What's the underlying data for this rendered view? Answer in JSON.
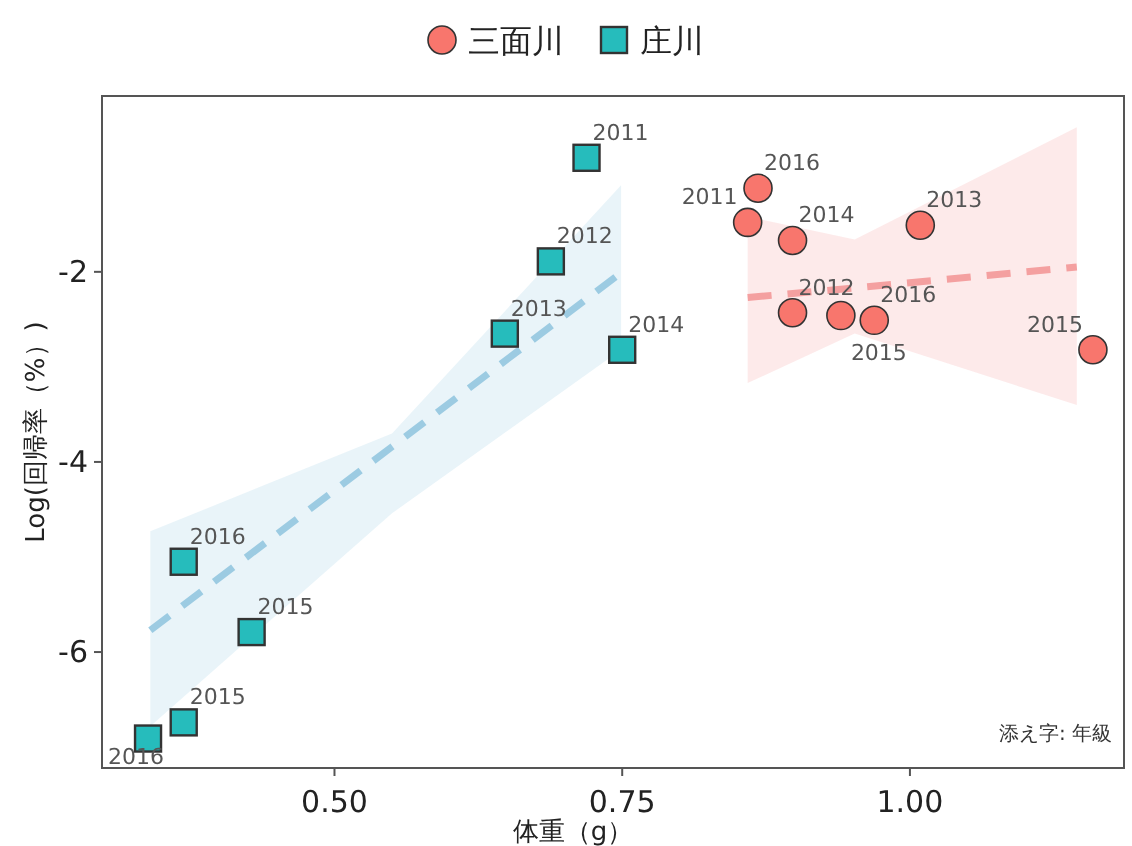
{
  "chart_data": {
    "type": "scatter",
    "xlabel": "体重（g）",
    "ylabel": "Log(回帰率（%）)",
    "xlim": [
      0.298,
      1.186
    ],
    "ylim": [
      -7.22,
      -0.15
    ],
    "xticks": [
      {
        "value": 0.5,
        "label": "0.50"
      },
      {
        "value": 0.75,
        "label": "0.75"
      },
      {
        "value": 1.0,
        "label": "1.00"
      }
    ],
    "yticks": [
      -6,
      -4,
      -2
    ],
    "grid": false,
    "legend": "top",
    "series": [
      {
        "type": "line",
        "color": "#f4a0a0",
        "line_style": "dashed",
        "x": [
          0.859,
          0.952,
          1.145
        ],
        "values": [
          -2.27,
          -2.17,
          -1.95
        ],
        "lower": [
          -3.17,
          -2.65,
          -3.4
        ],
        "upper": [
          -1.42,
          -1.66,
          -0.48
        ]
      },
      {
        "type": "line",
        "color": "#9ccbe2",
        "line_style": "dashed",
        "x": [
          0.34,
          0.55,
          0.749
        ],
        "values": [
          -5.77,
          -3.84,
          -2.01
        ],
        "lower": [
          -6.78,
          -4.54,
          -2.82
        ],
        "upper": [
          -4.73,
          -3.7,
          -1.09
        ]
      },
      {
        "name": "三面川",
        "color": "#f8766d",
        "marker": "circle",
        "x": [
          0.868,
          0.859,
          0.898,
          1.009,
          0.898,
          0.94,
          0.969,
          1.159
        ],
        "values": [
          -1.12,
          -1.48,
          -1.67,
          -1.51,
          -2.43,
          -2.46,
          -2.51,
          -2.82
        ]
      },
      {
        "name": "庄川",
        "color": "#26bcbc",
        "marker": "square",
        "x": [
          0.338,
          0.369,
          0.369,
          0.428,
          0.648,
          0.688,
          0.719,
          0.75
        ],
        "values": [
          -6.91,
          -6.74,
          -5.05,
          -5.79,
          -2.65,
          -1.89,
          -0.8,
          -2.82
        ]
      }
    ],
    "annotations": [
      {
        "text": "2016",
        "x": 0.868,
        "y": -1.12
      },
      {
        "text": "2011",
        "x": 0.859,
        "y": -1.48
      },
      {
        "text": "2014",
        "x": 0.898,
        "y": -1.67
      },
      {
        "text": "2013",
        "x": 1.009,
        "y": -1.51
      },
      {
        "text": "2012",
        "x": 0.898,
        "y": -2.43
      },
      {
        "text": "2015",
        "x": 0.94,
        "y": -2.46
      },
      {
        "text": "2016",
        "x": 0.969,
        "y": -2.51
      },
      {
        "text": "2015",
        "x": 1.159,
        "y": -2.82
      },
      {
        "text": "2016",
        "x": 0.338,
        "y": -6.91
      },
      {
        "text": "2015",
        "x": 0.369,
        "y": -6.74
      },
      {
        "text": "2016",
        "x": 0.369,
        "y": -5.05
      },
      {
        "text": "2015",
        "x": 0.428,
        "y": -5.79
      },
      {
        "text": "2013",
        "x": 0.648,
        "y": -2.65
      },
      {
        "text": "2012",
        "x": 0.688,
        "y": -1.89
      },
      {
        "text": "2011",
        "x": 0.719,
        "y": -0.8
      },
      {
        "text": "2014",
        "x": 0.75,
        "y": -2.82
      },
      "添え字: 年級"
    ]
  }
}
